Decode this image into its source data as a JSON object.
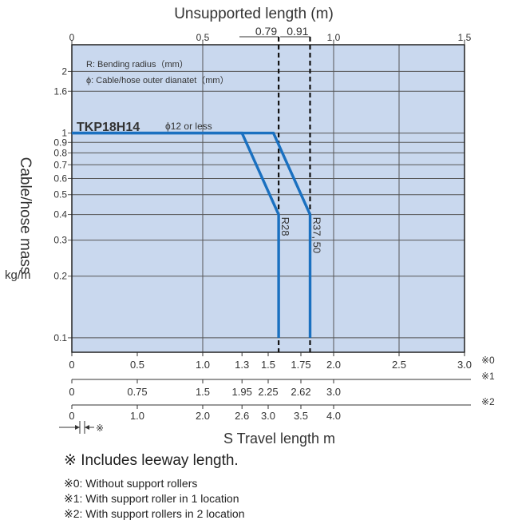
{
  "chart_data": {
    "type": "line",
    "top_axis": {
      "title": "Unsupported length (m)",
      "range": [
        0,
        1.5
      ],
      "ticks": [
        "0",
        "0.5",
        "1.0",
        "1.5"
      ],
      "markers": [
        "0.79",
        "0.91"
      ]
    },
    "y_axis": {
      "title": "Cable/hose mass",
      "unit": "kg/m",
      "scale": "log",
      "range": [
        0.085,
        2.7
      ],
      "ticks": [
        "2",
        "1.6",
        "1",
        "0.9",
        "0.8",
        "0.7",
        "0.6",
        "0.5",
        "0.4",
        "0.3",
        "0.2",
        "0.1"
      ]
    },
    "bottom_axes": {
      "title": "S Travel length m",
      "rows": [
        {
          "marker": "※0",
          "ticks": [
            "0",
            "0.5",
            "1.0",
            "1.3",
            "1.5",
            "1.75",
            "2.0",
            "2.5",
            "3.0"
          ]
        },
        {
          "marker": "※1",
          "ticks": [
            "0",
            "0.75",
            "1.5",
            "1.95",
            "2.25",
            "2.62",
            "3.0"
          ]
        },
        {
          "marker": "※2",
          "ticks": [
            "0",
            "1.0",
            "2.0",
            "2.6",
            "3.0",
            "3.5",
            "4.0"
          ]
        }
      ],
      "leeway_marker": "※"
    },
    "legend": {
      "r_note": "R:  Bending radius（mm）",
      "phi_note": "ϕ:  Cable/hose outer dianatet（mm）"
    },
    "model_label": "TKP18H14",
    "condition_label": "ϕ12 or less",
    "series": [
      {
        "name": "R28",
        "points": [
          [
            0,
            1.0
          ],
          [
            0.65,
            1.0
          ],
          [
            0.79,
            0.4
          ],
          [
            0.79,
            0.1
          ]
        ]
      },
      {
        "name": "R37, 50",
        "points": [
          [
            0,
            1.0
          ],
          [
            0.77,
            1.0
          ],
          [
            0.91,
            0.4
          ],
          [
            0.91,
            0.1
          ]
        ]
      }
    ]
  },
  "notes": {
    "main": "※  Includes leeway length.",
    "items": [
      "※0:  Without support rollers",
      "※1:  With support roller in 1 location",
      "※2:  With support rollers in 2 location"
    ]
  }
}
